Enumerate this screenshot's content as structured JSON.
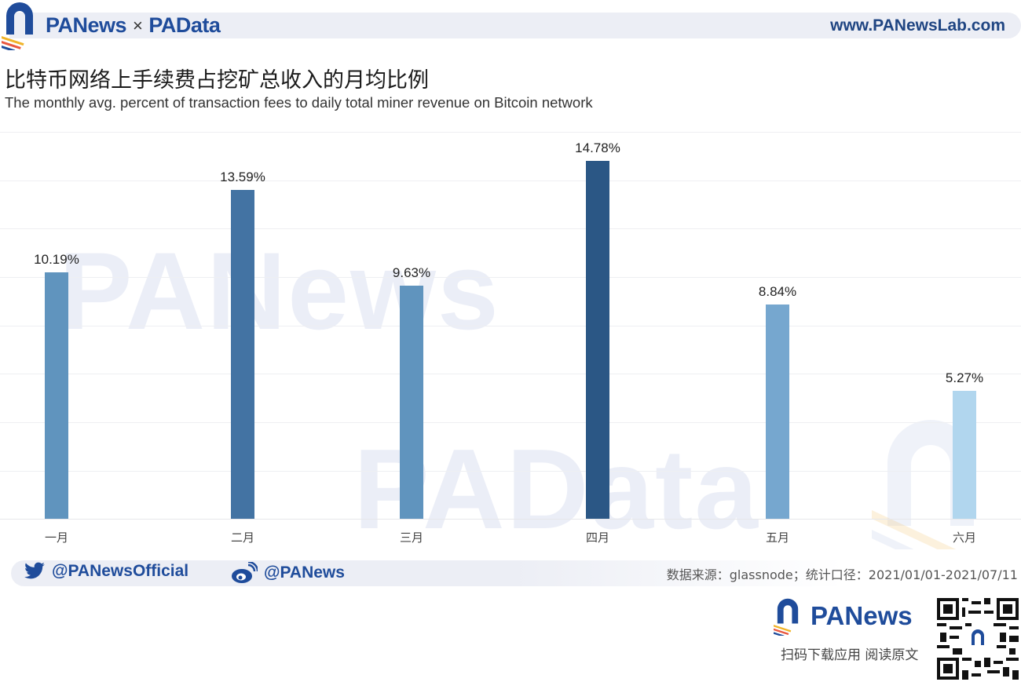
{
  "header": {
    "brand_left": "PANews",
    "separator": "×",
    "brand_right": "PAData",
    "url": "www.PANewsLab.com"
  },
  "title": {
    "cn": "比特币网络上手续费占挖矿总收入的月均比例",
    "en": "The monthly avg. percent of transaction fees to daily total miner revenue on Bitcoin network"
  },
  "watermarks": [
    "PANews",
    "PAData"
  ],
  "chart_data": {
    "type": "bar",
    "title": "比特币网络上手续费占挖矿总收入的月均比例",
    "subtitle": "The monthly avg. percent of transaction fees to daily total miner revenue on Bitcoin network",
    "categories": [
      "一月",
      "二月",
      "三月",
      "四月",
      "五月",
      "六月"
    ],
    "values": [
      10.19,
      13.59,
      9.63,
      14.78,
      8.84,
      5.27
    ],
    "labels": [
      "10.19%",
      "13.59%",
      "9.63%",
      "14.78%",
      "8.84%",
      "5.27%"
    ],
    "colors": [
      "#6094be",
      "#4373a3",
      "#6094be",
      "#2b5785",
      "#76a7cf",
      "#b1d6ee"
    ],
    "xlabel": "",
    "ylabel": "",
    "ylim": [
      0,
      16
    ],
    "grid": true,
    "legend": null
  },
  "footer": {
    "twitter_handle": "@PANewsOfficial",
    "weibo_handle": "@PANews",
    "source": "数据来源：glassnode；统计口径：2021/01/01-2021/07/11",
    "promo_brand": "PANews",
    "promo_text": "扫码下载应用  阅读原文"
  }
}
